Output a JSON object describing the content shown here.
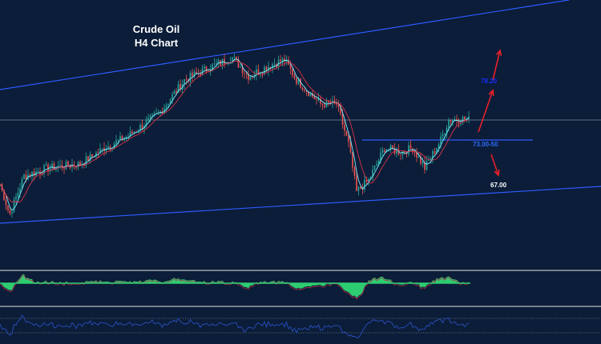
{
  "chart_data": {
    "type": "candlestick",
    "title": "Crude Oil",
    "subtitle": "H4 Chart",
    "closes": [
      67.2,
      63.0,
      68.3,
      69.4,
      69.95,
      72.15,
      73.8,
      77.1,
      81.5,
      83.15,
      84.6,
      82.05,
      83.7,
      84.25,
      81.5,
      78.2,
      78.2,
      72.7,
      66.1,
      67.75,
      72.15,
      71.6,
      72.15,
      69.4,
      73.25,
      76.0,
      76.2,
      76.0
    ],
    "annotations": [
      {
        "text": "78.20",
        "color": "#1a2cff"
      },
      {
        "text": "73.00-50",
        "color": "#2d6bff"
      },
      {
        "text": "67.00",
        "color": "#ffffff"
      }
    ],
    "levels": {
      "support_zone": 73.25,
      "current": 76.0
    },
    "colors": {
      "background": "#0b1d38",
      "up": "#26a69a",
      "down": "#ef5350",
      "trendline": "#2d5bff",
      "arrow": "#e8202a",
      "histogram": "#2ecc71",
      "oscillator": "#2a4fc0"
    },
    "grid": false,
    "indicators": [
      "histogram-oscillator",
      "line-oscillator"
    ]
  }
}
